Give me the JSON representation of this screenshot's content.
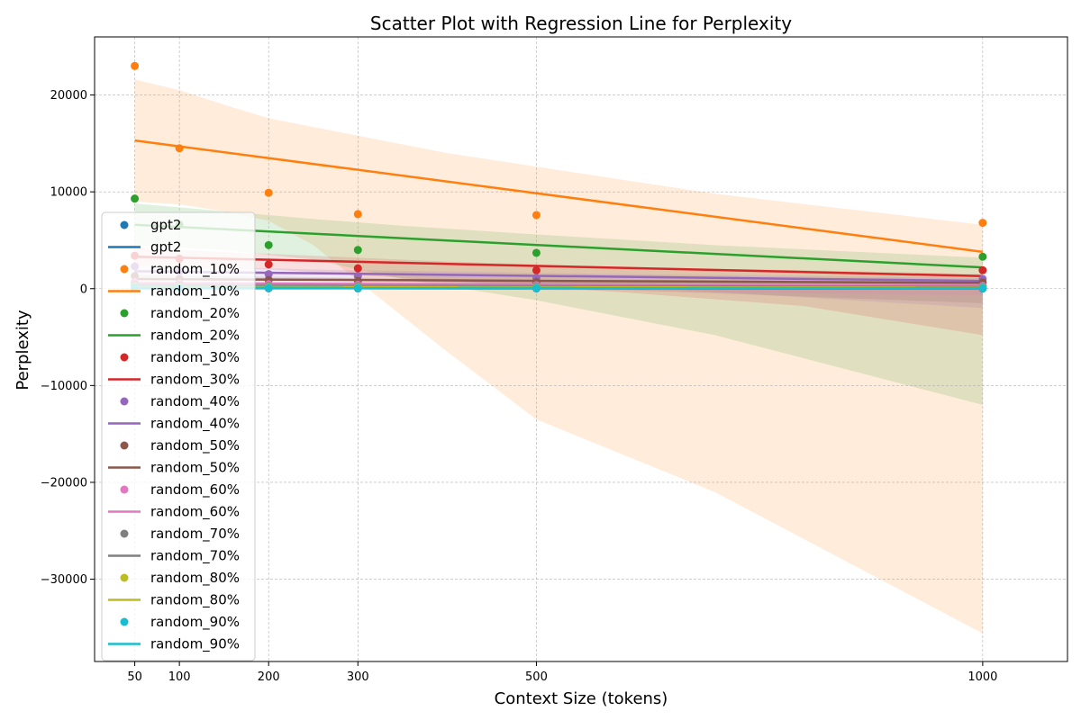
{
  "chart_data": {
    "type": "scatter",
    "title": "Scatter Plot with Regression Line for Perplexity",
    "xlabel": "Context Size (tokens)",
    "ylabel": "Perplexity",
    "xlim": [
      5,
      1095
    ],
    "ylim": [
      -38500,
      26000
    ],
    "x_ticks": [
      50,
      100,
      200,
      300,
      500,
      1000
    ],
    "x_tick_labels": [
      "50",
      "100",
      "200",
      "300",
      "500",
      "1000"
    ],
    "y_ticks": [
      20000,
      10000,
      0,
      -10000,
      -20000,
      -30000
    ],
    "y_tick_labels": [
      "20000",
      "10000",
      "0",
      "−10000",
      "−20000",
      "−30000"
    ],
    "grid": true,
    "legend_position": "left-middle",
    "x": [
      50,
      100,
      200,
      300,
      500,
      1000
    ],
    "series": [
      {
        "name": "gpt2",
        "color": "#1f77b4",
        "values": [
          60,
          45,
          35,
          30,
          25,
          20
        ],
        "fit": [
          52,
          20
        ],
        "band": null
      },
      {
        "name": "random_10%",
        "color": "#ff7f0e",
        "values": [
          23000,
          14500,
          9900,
          7700,
          7600,
          6800
        ],
        "fit": [
          15300,
          3800
        ],
        "band": [
          [
            50,
            21600,
            9000
          ],
          [
            100,
            20500,
            8700
          ],
          [
            150,
            19000,
            8000
          ],
          [
            200,
            17600,
            7000
          ],
          [
            250,
            16700,
            4500
          ],
          [
            300,
            15800,
            800
          ],
          [
            400,
            14000,
            -6500
          ],
          [
            500,
            12600,
            -13500
          ],
          [
            700,
            9800,
            -21000
          ],
          [
            1000,
            6600,
            -35600
          ]
        ]
      },
      {
        "name": "random_20%",
        "color": "#2ca02c",
        "values": [
          9300,
          6600,
          4500,
          4000,
          3700,
          3300
        ],
        "fit": [
          6600,
          2200
        ],
        "band": [
          [
            50,
            8800,
            4500
          ],
          [
            150,
            8000,
            4000
          ],
          [
            250,
            7200,
            3000
          ],
          [
            350,
            6500,
            1000
          ],
          [
            500,
            5600,
            -1200
          ],
          [
            700,
            4500,
            -4800
          ],
          [
            1000,
            3200,
            -12000
          ]
        ]
      },
      {
        "name": "random_30%",
        "color": "#d62728",
        "values": [
          3400,
          3100,
          2500,
          2100,
          1900,
          1900
        ],
        "fit": [
          3300,
          1300
        ],
        "band": [
          [
            50,
            4200,
            2400
          ],
          [
            200,
            3600,
            2000
          ],
          [
            400,
            2800,
            800
          ],
          [
            600,
            2200,
            -400
          ],
          [
            800,
            1900,
            -1800
          ],
          [
            1000,
            1500,
            -4800
          ]
        ]
      },
      {
        "name": "random_40%",
        "color": "#9467bd",
        "values": [
          2300,
          1800,
          1500,
          1300,
          1100,
          1000
        ],
        "fit": [
          1800,
          800
        ],
        "band": [
          [
            50,
            2400,
            1200
          ],
          [
            300,
            1900,
            900
          ],
          [
            600,
            1500,
            200
          ],
          [
            1000,
            1100,
            -2000
          ]
        ]
      },
      {
        "name": "random_50%",
        "color": "#8c564b",
        "values": [
          1300,
          1000,
          900,
          800,
          700,
          650
        ],
        "fit": [
          1000,
          600
        ],
        "band": [
          [
            50,
            1400,
            600
          ],
          [
            500,
            900,
            200
          ],
          [
            1000,
            800,
            -1500
          ]
        ]
      },
      {
        "name": "random_60%",
        "color": "#e377c2",
        "values": [
          700,
          550,
          450,
          400,
          350,
          300
        ],
        "fit": [
          560,
          300
        ],
        "band": [
          [
            50,
            750,
            350
          ],
          [
            1000,
            400,
            -700
          ]
        ]
      },
      {
        "name": "random_70%",
        "color": "#7f7f7f",
        "values": [
          400,
          330,
          280,
          250,
          220,
          200
        ],
        "fit": [
          330,
          190
        ],
        "band": null
      },
      {
        "name": "random_80%",
        "color": "#bcbd22",
        "values": [
          250,
          200,
          170,
          150,
          130,
          120
        ],
        "fit": [
          200,
          115
        ],
        "band": null
      },
      {
        "name": "random_90%",
        "color": "#17becf",
        "values": [
          120,
          100,
          80,
          70,
          60,
          50
        ],
        "fit": [
          100,
          45
        ],
        "band": null
      }
    ]
  }
}
